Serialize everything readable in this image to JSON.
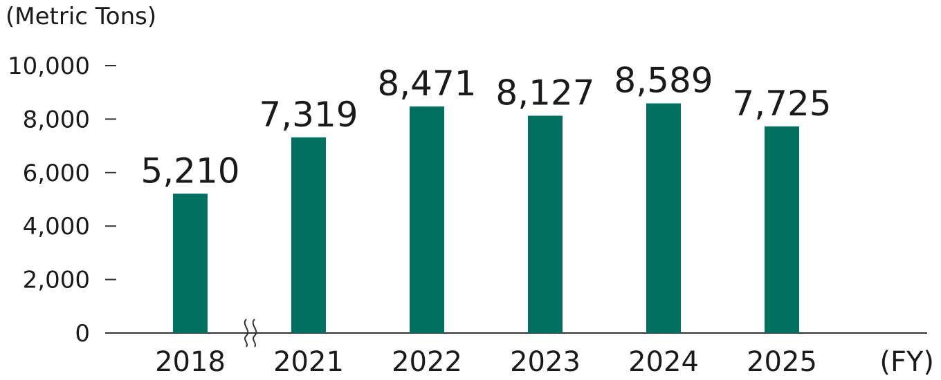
{
  "chart_data": {
    "type": "bar",
    "ylabel": "(Metric Tons)",
    "xlabel": "(FY)",
    "categories": [
      "2018",
      "2021",
      "2022",
      "2023",
      "2024",
      "2025"
    ],
    "values": [
      5210,
      7319,
      8471,
      8127,
      8589,
      7725
    ],
    "value_labels": [
      "5,210",
      "7,319",
      "8,471",
      "8,127",
      "8,589",
      "7,725"
    ],
    "ylim": [
      0,
      10000
    ],
    "yticks": [
      0,
      2000,
      4000,
      6000,
      8000,
      10000
    ],
    "ytick_labels": [
      "0",
      "2,000",
      "4,000",
      "6,000",
      "8,000",
      "10,000"
    ],
    "axis_break_after_category": "2018",
    "grid": false,
    "legend": "none",
    "colors": {
      "bar": "#007060"
    }
  }
}
